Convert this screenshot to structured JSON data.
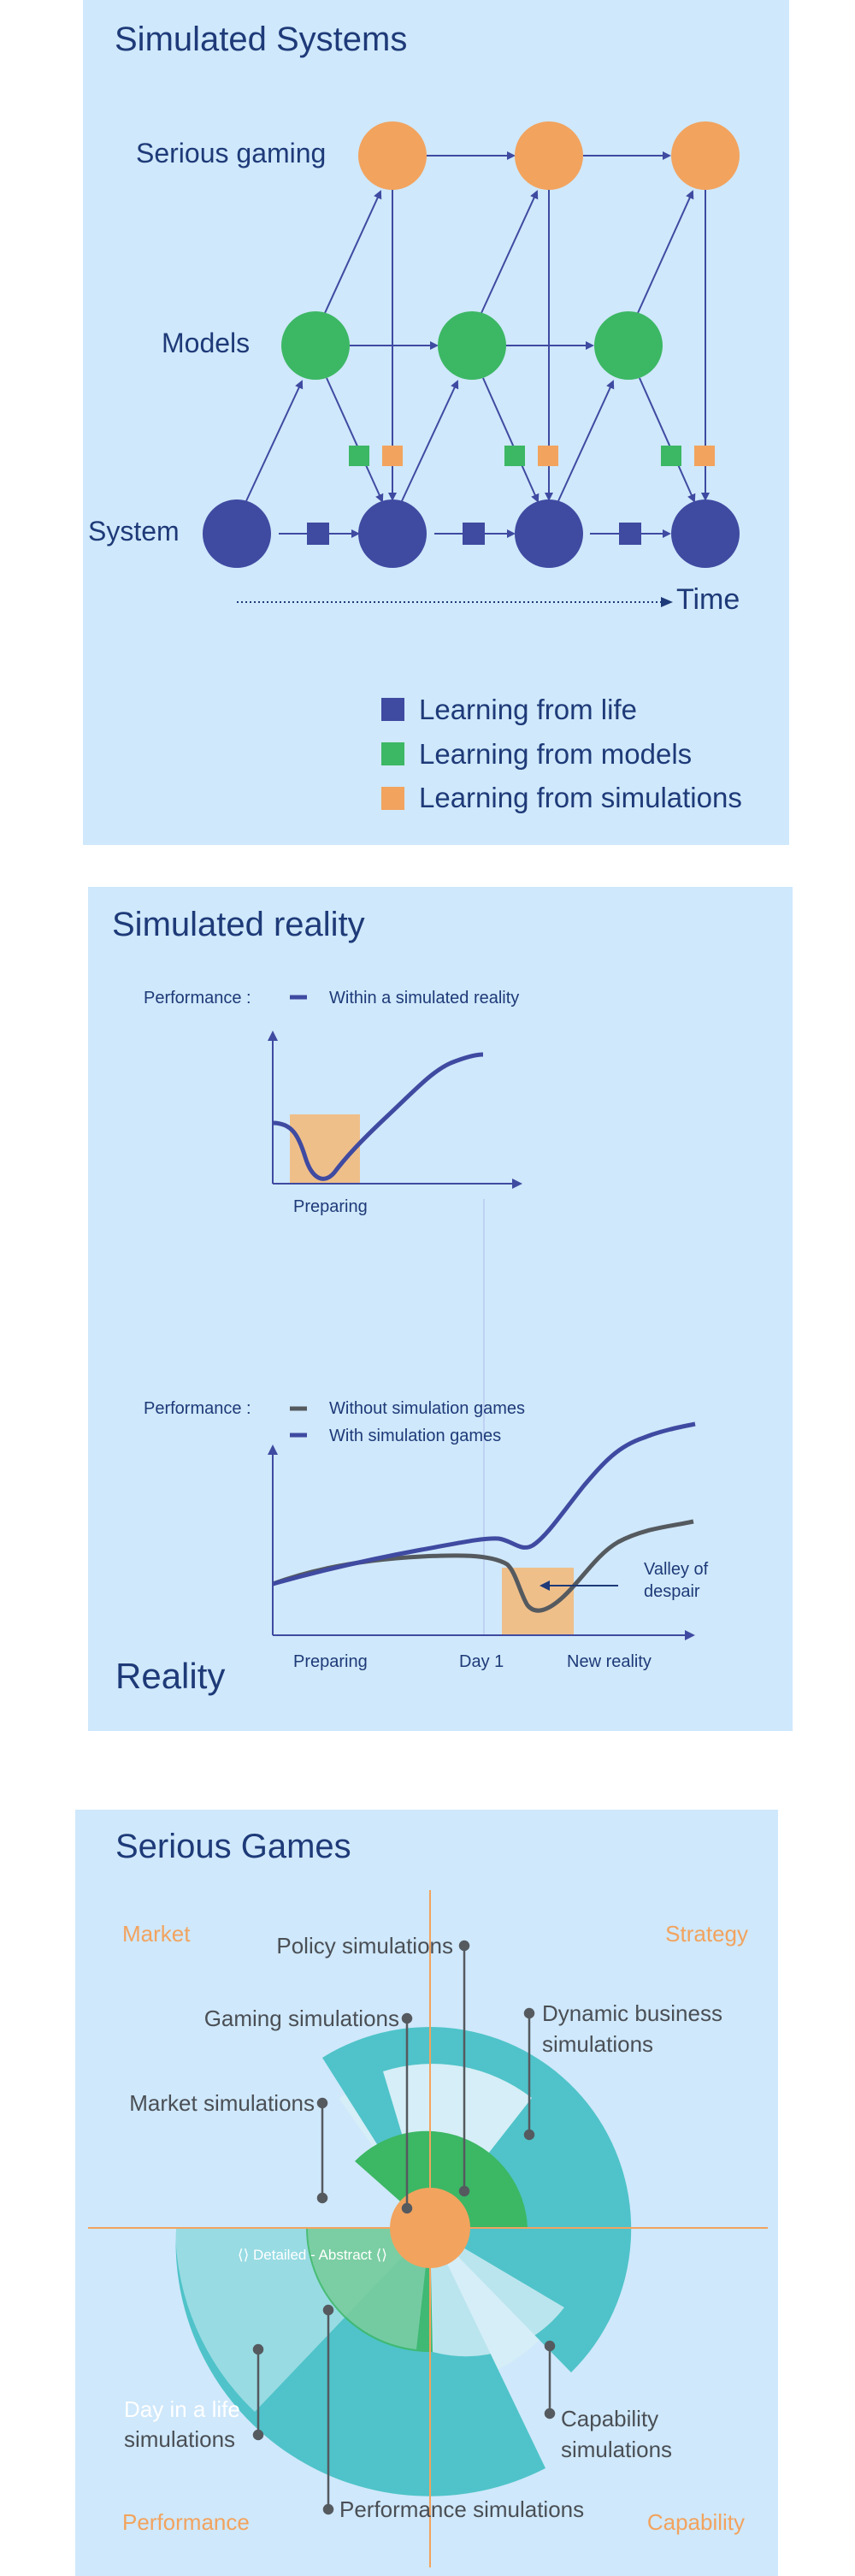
{
  "panel1": {
    "title": "Simulated Systems",
    "rows": {
      "serious_gaming": "Serious gaming",
      "models": "Models",
      "system": "System"
    },
    "time_label": "Time",
    "legend": [
      {
        "label": "Learning from life",
        "color": "#3f4aa1"
      },
      {
        "label": "Learning from models",
        "color": "#3cb764"
      },
      {
        "label": "Learning from simulations",
        "color": "#f2a35e"
      }
    ]
  },
  "panel2": {
    "title": "Simulated reality",
    "reality_label": "Reality",
    "top_chart": {
      "performance_label": "Performance :",
      "series": [
        {
          "name": "Within a simulated reality",
          "color": "#3f4aa1"
        }
      ],
      "x_label": "Preparing"
    },
    "bottom_chart": {
      "performance_label": "Performance :",
      "series": [
        {
          "name": "Without simulation games",
          "color": "#555a5f"
        },
        {
          "name": "With simulation games",
          "color": "#3f4aa1"
        }
      ],
      "x_labels": [
        "Preparing",
        "Day 1",
        "New reality"
      ],
      "annotation": [
        "Valley of",
        "despair"
      ]
    }
  },
  "panel3": {
    "title": "Serious Games",
    "quadrants": {
      "top_left": "Market",
      "top_right": "Strategy",
      "bottom_left": "Performance",
      "bottom_right": "Capability"
    },
    "center_label": "Detailed - Abstract",
    "simulations": {
      "policy": "Policy simulations",
      "gaming": "Gaming simulations",
      "dynamic_business": [
        "Dynamic business",
        "simulations"
      ],
      "market": "Market simulations",
      "day_in_life": [
        "Day in a life",
        "simulations"
      ],
      "capability": [
        "Capability",
        "simulations"
      ],
      "performance": "Performance simulations"
    },
    "colors": {
      "axis": "#f2a35e",
      "teal": "#4fc3c9",
      "green": "#3cb764",
      "light": "#d6eef7",
      "center": "#f2a35e"
    }
  }
}
